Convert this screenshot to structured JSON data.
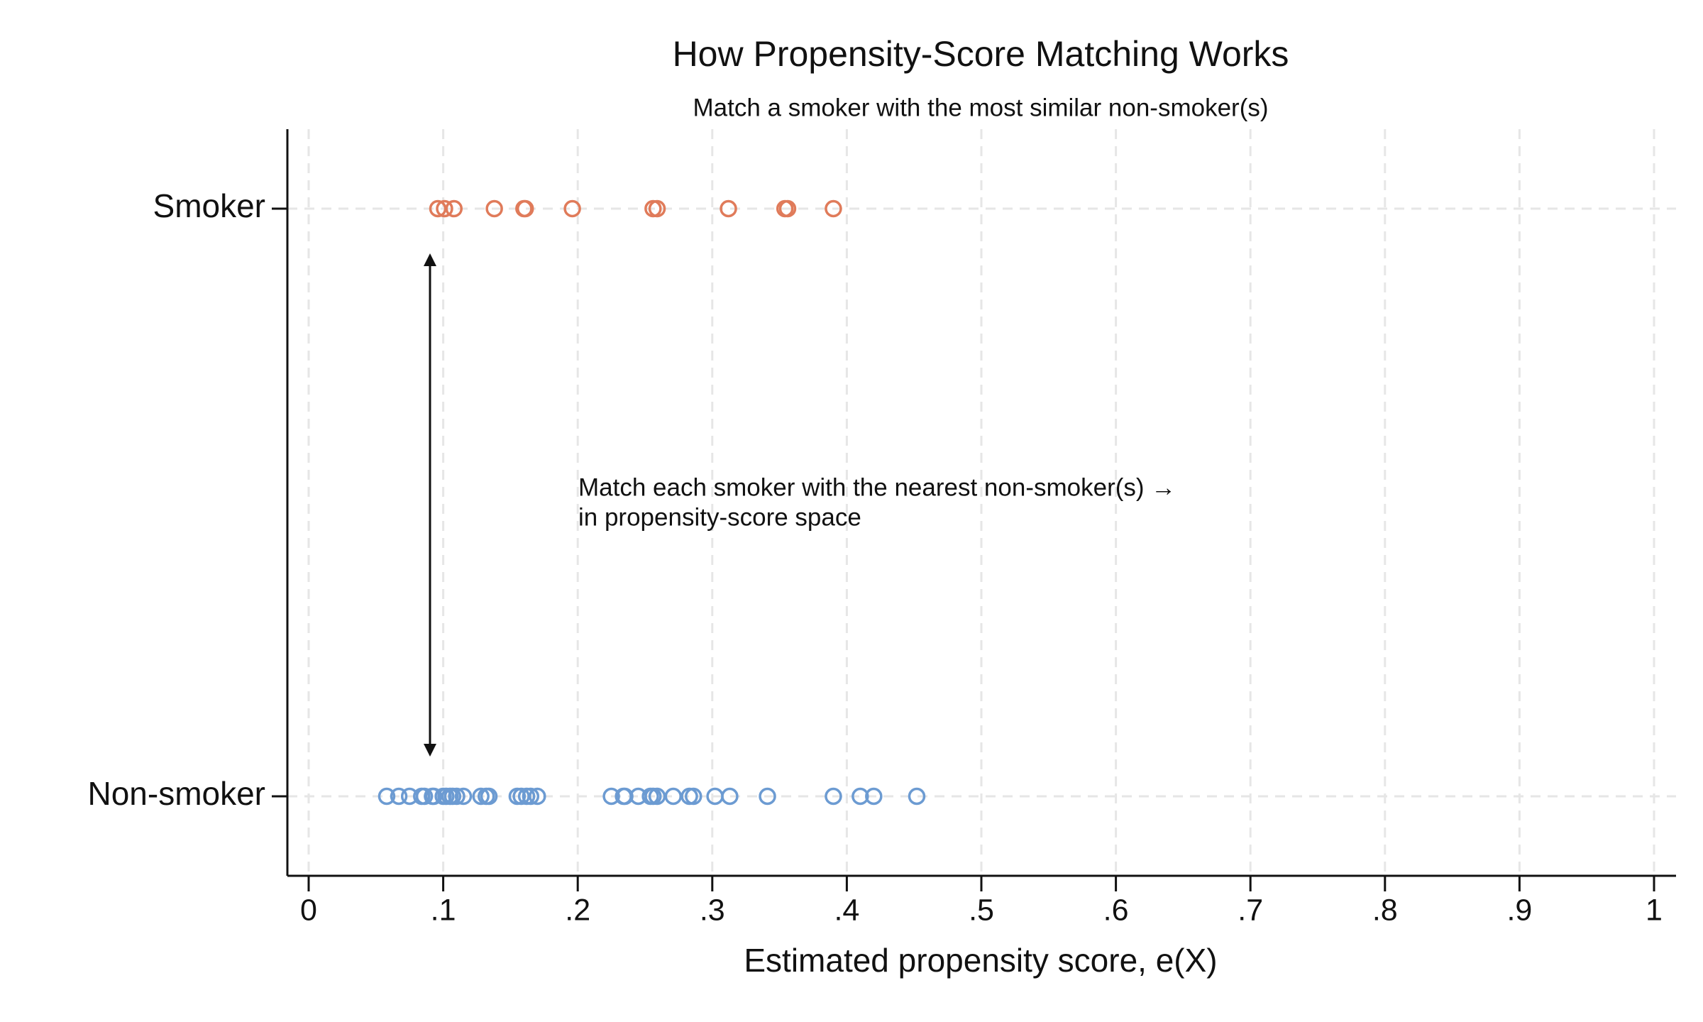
{
  "chart_data": {
    "type": "strip",
    "title": "How Propensity-Score Matching Works",
    "subtitle": "Match a smoker with the most similar non-smoker(s)",
    "x_label": "Estimated propensity score, e(X)",
    "annotation": [
      "Match each smoker with the nearest non-smoker(s) →",
      "in propensity-score space"
    ],
    "categories": [
      "Smoker",
      "Non-smoker"
    ],
    "series": [
      {
        "color": "#e07b5a",
        "values": [
          0.096,
          0.101,
          0.108,
          0.138,
          0.16,
          0.161,
          0.196,
          0.256,
          0.259,
          0.312,
          0.354,
          0.356,
          0.39
        ]
      },
      {
        "color": "#6c9bd2",
        "values": [
          0.058,
          0.067,
          0.075,
          0.084,
          0.086,
          0.092,
          0.093,
          0.1,
          0.102,
          0.105,
          0.107,
          0.11,
          0.115,
          0.128,
          0.132,
          0.134,
          0.155,
          0.158,
          0.162,
          0.165,
          0.17,
          0.225,
          0.234,
          0.235,
          0.245,
          0.254,
          0.256,
          0.259,
          0.271,
          0.283,
          0.286,
          0.302,
          0.313,
          0.341,
          0.39,
          0.41,
          0.42,
          0.452
        ]
      }
    ],
    "xlim": [
      0,
      1
    ],
    "xticks": [
      0,
      {
        "value": 0.1,
        "label": ".1"
      },
      {
        "value": 0.2,
        "label": ".2"
      },
      {
        "value": 0.3,
        "label": ".3"
      },
      {
        "value": 0.4,
        "label": ".4"
      },
      {
        "value": 0.5,
        "label": ".5"
      },
      {
        "value": 0.6,
        "label": ".6"
      },
      {
        "value": 0.7,
        "label": ".7"
      },
      {
        "value": 0.8,
        "label": ".8"
      },
      {
        "value": 0.9,
        "label": ".9"
      },
      1
    ],
    "grid": true
  }
}
